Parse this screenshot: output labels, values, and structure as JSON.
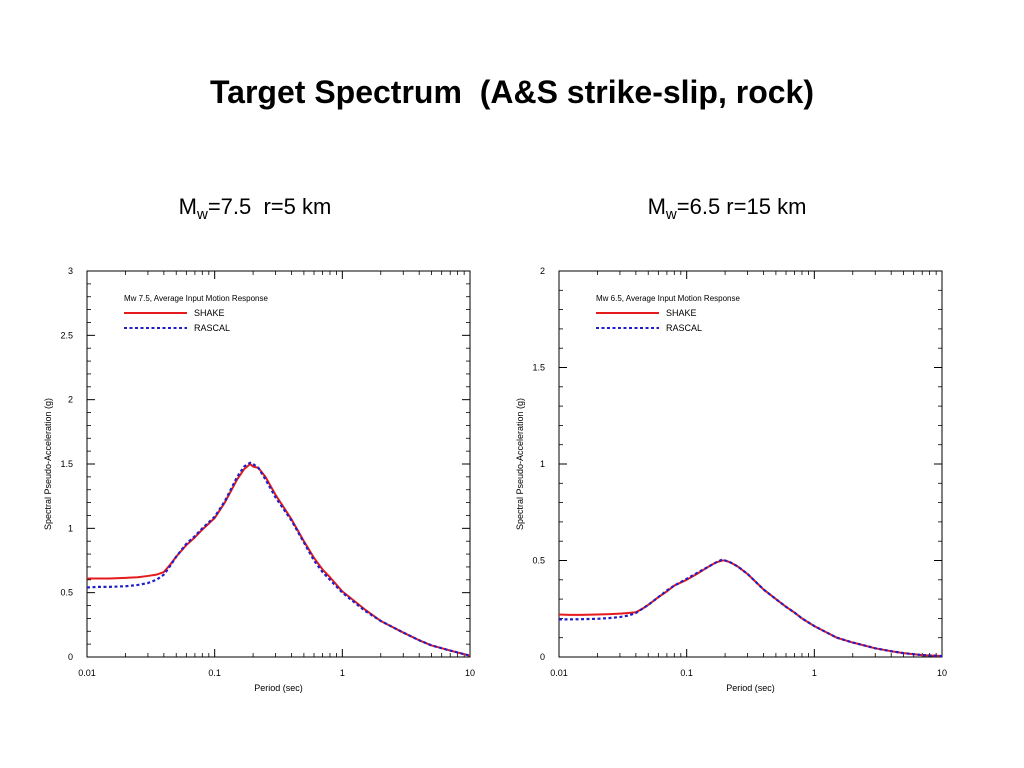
{
  "title": "Target Spectrum  (A&S strike-slip, rock)",
  "colors": {
    "shake": "#e41a1c",
    "rascal": "#1f1fcc",
    "axis": "#000000"
  },
  "chart_data": [
    {
      "type": "line",
      "heading": {
        "m": "M",
        "sub": "w",
        "rest": "=7.5  r=5 km"
      },
      "xlabel": "Period (sec)",
      "ylabel": "Spectral Pseudo-Acceleration (g)",
      "xscale": "log",
      "xlim": [
        0.01,
        10
      ],
      "ylim": [
        0,
        3
      ],
      "xticks": [
        0.01,
        0.1,
        1,
        10
      ],
      "xtick_labels": [
        "0.01",
        "0.1",
        "1",
        "10"
      ],
      "yticks": [
        0,
        0.5,
        1,
        1.5,
        2,
        2.5,
        3
      ],
      "ytick_labels": [
        "0",
        "0.5",
        "1",
        "1.5",
        "2",
        "2.5",
        "3"
      ],
      "legend_title": "Mw 7.5, Average Input Motion Response",
      "legend_position": "top-left",
      "grid": false,
      "series": [
        {
          "name": "SHAKE",
          "style": "solid",
          "x": [
            0.01,
            0.012,
            0.015,
            0.02,
            0.025,
            0.03,
            0.035,
            0.04,
            0.045,
            0.05,
            0.06,
            0.07,
            0.08,
            0.1,
            0.12,
            0.15,
            0.17,
            0.19,
            0.2,
            0.22,
            0.25,
            0.3,
            0.4,
            0.5,
            0.6,
            0.7,
            0.8,
            1,
            1.5,
            2,
            3,
            4,
            5,
            7,
            10
          ],
          "values": [
            0.61,
            0.61,
            0.61,
            0.615,
            0.62,
            0.63,
            0.64,
            0.66,
            0.72,
            0.78,
            0.87,
            0.93,
            0.99,
            1.08,
            1.2,
            1.38,
            1.46,
            1.5,
            1.48,
            1.47,
            1.4,
            1.26,
            1.07,
            0.9,
            0.77,
            0.68,
            0.62,
            0.51,
            0.37,
            0.28,
            0.19,
            0.13,
            0.09,
            0.05,
            0.01
          ]
        },
        {
          "name": "RASCAL",
          "style": "dashed",
          "x": [
            0.01,
            0.012,
            0.015,
            0.02,
            0.025,
            0.03,
            0.035,
            0.04,
            0.045,
            0.05,
            0.06,
            0.07,
            0.08,
            0.1,
            0.12,
            0.15,
            0.17,
            0.19,
            0.2,
            0.22,
            0.25,
            0.3,
            0.4,
            0.5,
            0.6,
            0.7,
            0.8,
            1,
            1.5,
            2,
            3,
            4,
            5,
            7,
            10
          ],
          "values": [
            0.54,
            0.545,
            0.545,
            0.55,
            0.56,
            0.575,
            0.6,
            0.64,
            0.71,
            0.78,
            0.88,
            0.94,
            1.0,
            1.09,
            1.21,
            1.4,
            1.48,
            1.51,
            1.5,
            1.47,
            1.38,
            1.24,
            1.06,
            0.89,
            0.75,
            0.66,
            0.6,
            0.5,
            0.36,
            0.28,
            0.19,
            0.13,
            0.09,
            0.05,
            0.01
          ]
        }
      ]
    },
    {
      "type": "line",
      "heading": {
        "m": "M",
        "sub": "w",
        "rest": "=6.5 r=15 km"
      },
      "xlabel": "Period (sec)",
      "ylabel": "Spectral Pseudo-Acceleration (g)",
      "xscale": "log",
      "xlim": [
        0.01,
        10
      ],
      "ylim": [
        0,
        2
      ],
      "xticks": [
        0.01,
        0.1,
        1,
        10
      ],
      "xtick_labels": [
        "0.01",
        "0.1",
        "1",
        "10"
      ],
      "yticks": [
        0,
        0.5,
        1,
        1.5,
        2
      ],
      "ytick_labels": [
        "0",
        "0.5",
        "1",
        "1.5",
        "2"
      ],
      "legend_title": "Mw 6.5, Average Input Motion Response",
      "legend_position": "top-left",
      "grid": false,
      "series": [
        {
          "name": "SHAKE",
          "style": "solid",
          "x": [
            0.01,
            0.012,
            0.015,
            0.02,
            0.025,
            0.03,
            0.035,
            0.04,
            0.045,
            0.05,
            0.06,
            0.07,
            0.08,
            0.1,
            0.12,
            0.15,
            0.17,
            0.19,
            0.2,
            0.22,
            0.25,
            0.3,
            0.4,
            0.5,
            0.6,
            0.7,
            0.8,
            1,
            1.5,
            2,
            3,
            4,
            5,
            7,
            10
          ],
          "values": [
            0.22,
            0.218,
            0.218,
            0.22,
            0.222,
            0.225,
            0.228,
            0.232,
            0.25,
            0.27,
            0.31,
            0.34,
            0.37,
            0.4,
            0.43,
            0.47,
            0.49,
            0.5,
            0.5,
            0.49,
            0.47,
            0.43,
            0.35,
            0.3,
            0.26,
            0.23,
            0.2,
            0.16,
            0.1,
            0.075,
            0.045,
            0.03,
            0.02,
            0.01,
            0.005
          ]
        },
        {
          "name": "RASCAL",
          "style": "dashed",
          "x": [
            0.01,
            0.012,
            0.015,
            0.02,
            0.025,
            0.03,
            0.035,
            0.04,
            0.045,
            0.05,
            0.06,
            0.07,
            0.08,
            0.1,
            0.12,
            0.15,
            0.17,
            0.19,
            0.2,
            0.22,
            0.25,
            0.3,
            0.4,
            0.5,
            0.6,
            0.7,
            0.8,
            1,
            1.5,
            2,
            3,
            4,
            5,
            7,
            10
          ],
          "values": [
            0.195,
            0.195,
            0.196,
            0.198,
            0.202,
            0.207,
            0.215,
            0.228,
            0.25,
            0.27,
            0.31,
            0.345,
            0.37,
            0.405,
            0.435,
            0.47,
            0.49,
            0.505,
            0.5,
            0.49,
            0.47,
            0.43,
            0.35,
            0.3,
            0.26,
            0.23,
            0.2,
            0.16,
            0.1,
            0.075,
            0.045,
            0.03,
            0.02,
            0.01,
            0.005
          ]
        }
      ]
    }
  ]
}
